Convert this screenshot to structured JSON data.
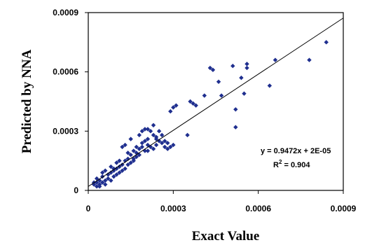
{
  "chart_data": {
    "type": "scatter",
    "xlabel": "Exact Value",
    "ylabel": "Predicted by NNA",
    "xlim": [
      0,
      0.0009
    ],
    "ylim": [
      0,
      0.0009
    ],
    "xticks": [
      "0",
      "0.0003",
      "0.0006",
      "0.0009"
    ],
    "yticks": [
      "0",
      "0.0003",
      "0.0006",
      "0.0009"
    ],
    "grid": false,
    "marker_color": "#1f2f8f",
    "trendline": {
      "slope": 0.9472,
      "intercept": 2e-05,
      "equation": "y = 0.9472x + 2E-05",
      "r2_prefix": "R",
      "r2_sup": "2",
      "r2_suffix": " = 0.904"
    },
    "series": [
      {
        "points": [
          [
            2e-05,
            3e-05
          ],
          [
            3e-05,
            4e-05
          ],
          [
            3e-05,
            2e-05
          ],
          [
            4e-05,
            5e-05
          ],
          [
            4e-05,
            3e-05
          ],
          [
            5e-05,
            4e-05
          ],
          [
            5e-05,
            7e-05
          ],
          [
            6e-05,
            5e-05
          ],
          [
            6e-05,
            3e-05
          ],
          [
            7e-05,
            8e-05
          ],
          [
            7e-05,
            6e-05
          ],
          [
            8e-05,
            9e-05
          ],
          [
            8e-05,
            5e-05
          ],
          [
            9e-05,
            7e-05
          ],
          [
            9e-05,
            0.0001
          ],
          [
            0.0001,
            8e-05
          ],
          [
            0.0001,
            0.00011
          ],
          [
            0.00011,
            9e-05
          ],
          [
            0.00011,
            0.00012
          ],
          [
            0.00012,
            0.0001
          ],
          [
            0.00012,
            0.00013
          ],
          [
            0.00013,
            0.00011
          ],
          [
            0.00013,
            0.00015
          ],
          [
            0.00014,
            0.00013
          ],
          [
            0.00014,
            0.00016
          ],
          [
            0.00015,
            0.00014
          ],
          [
            0.00015,
            0.00018
          ],
          [
            0.00016,
            0.00016
          ],
          [
            0.00016,
            0.00015
          ],
          [
            0.00017,
            0.00019
          ],
          [
            0.00017,
            0.00017
          ],
          [
            0.00018,
            0.00018
          ],
          [
            0.00018,
            0.00021
          ],
          [
            0.00019,
            0.00022
          ],
          [
            0.00019,
            0.00024
          ],
          [
            0.0002,
            0.0002
          ],
          [
            0.0002,
            0.00025
          ],
          [
            0.00021,
            0.00023
          ],
          [
            0.00021,
            0.00026
          ],
          [
            0.00022,
            0.00022
          ],
          [
            0.00022,
            0.0003
          ],
          [
            0.00023,
            0.00028
          ],
          [
            0.00023,
            0.00021
          ],
          [
            0.00024,
            0.00027
          ],
          [
            0.00024,
            0.00023
          ],
          [
            0.00025,
            0.00025
          ],
          [
            0.00026,
            0.00024
          ],
          [
            0.00027,
            0.00022
          ],
          [
            0.00028,
            0.00021
          ],
          [
            0.00029,
            0.00022
          ],
          [
            0.0003,
            0.00023
          ],
          [
            0.0002,
            0.00031
          ],
          [
            0.00019,
            0.0003
          ],
          [
            0.00023,
            0.00033
          ],
          [
            0.00018,
            0.00028
          ],
          [
            0.00021,
            0.00031
          ],
          [
            0.00029,
            0.0004
          ],
          [
            0.0003,
            0.00042
          ],
          [
            0.00031,
            0.00043
          ],
          [
            0.00036,
            0.00045
          ],
          [
            0.00037,
            0.00044
          ],
          [
            0.00038,
            0.00043
          ],
          [
            0.00035,
            0.00028
          ],
          [
            0.00041,
            0.00048
          ],
          [
            0.00043,
            0.00062
          ],
          [
            0.00044,
            0.00061
          ],
          [
            0.00046,
            0.00055
          ],
          [
            0.00047,
            0.00048
          ],
          [
            0.00051,
            0.00063
          ],
          [
            0.00052,
            0.00032
          ],
          [
            0.00052,
            0.00041
          ],
          [
            0.00054,
            0.00057
          ],
          [
            0.00055,
            0.00049
          ],
          [
            0.00056,
            0.00064
          ],
          [
            0.00056,
            0.00062
          ],
          [
            0.00064,
            0.00053
          ],
          [
            0.00066,
            0.00066
          ],
          [
            0.00078,
            0.00066
          ],
          [
            0.00084,
            0.00075
          ],
          [
            0.00012,
            0.00022
          ],
          [
            0.00013,
            0.00023
          ],
          [
            0.00015,
            0.00026
          ],
          [
            9e-05,
            0.00011
          ],
          [
            6e-05,
            0.0001
          ],
          [
            5e-05,
            9e-05
          ],
          [
            3e-05,
            6e-05
          ],
          [
            2e-05,
            4e-05
          ],
          [
            4e-05,
            2e-05
          ],
          [
            8e-05,
            0.00012
          ],
          [
            0.0001,
            0.00014
          ],
          [
            0.00011,
            0.00015
          ],
          [
            0.00014,
            0.00019
          ],
          [
            0.00016,
            0.0002
          ],
          [
            0.00017,
            0.00022
          ],
          [
            0.00024,
            0.00026
          ],
          [
            0.00025,
            0.0003
          ],
          [
            0.00026,
            0.00028
          ],
          [
            0.00028,
            0.00024
          ],
          [
            0.00027,
            0.00025
          ],
          [
            0.00021,
            0.0002
          ]
        ]
      }
    ]
  }
}
